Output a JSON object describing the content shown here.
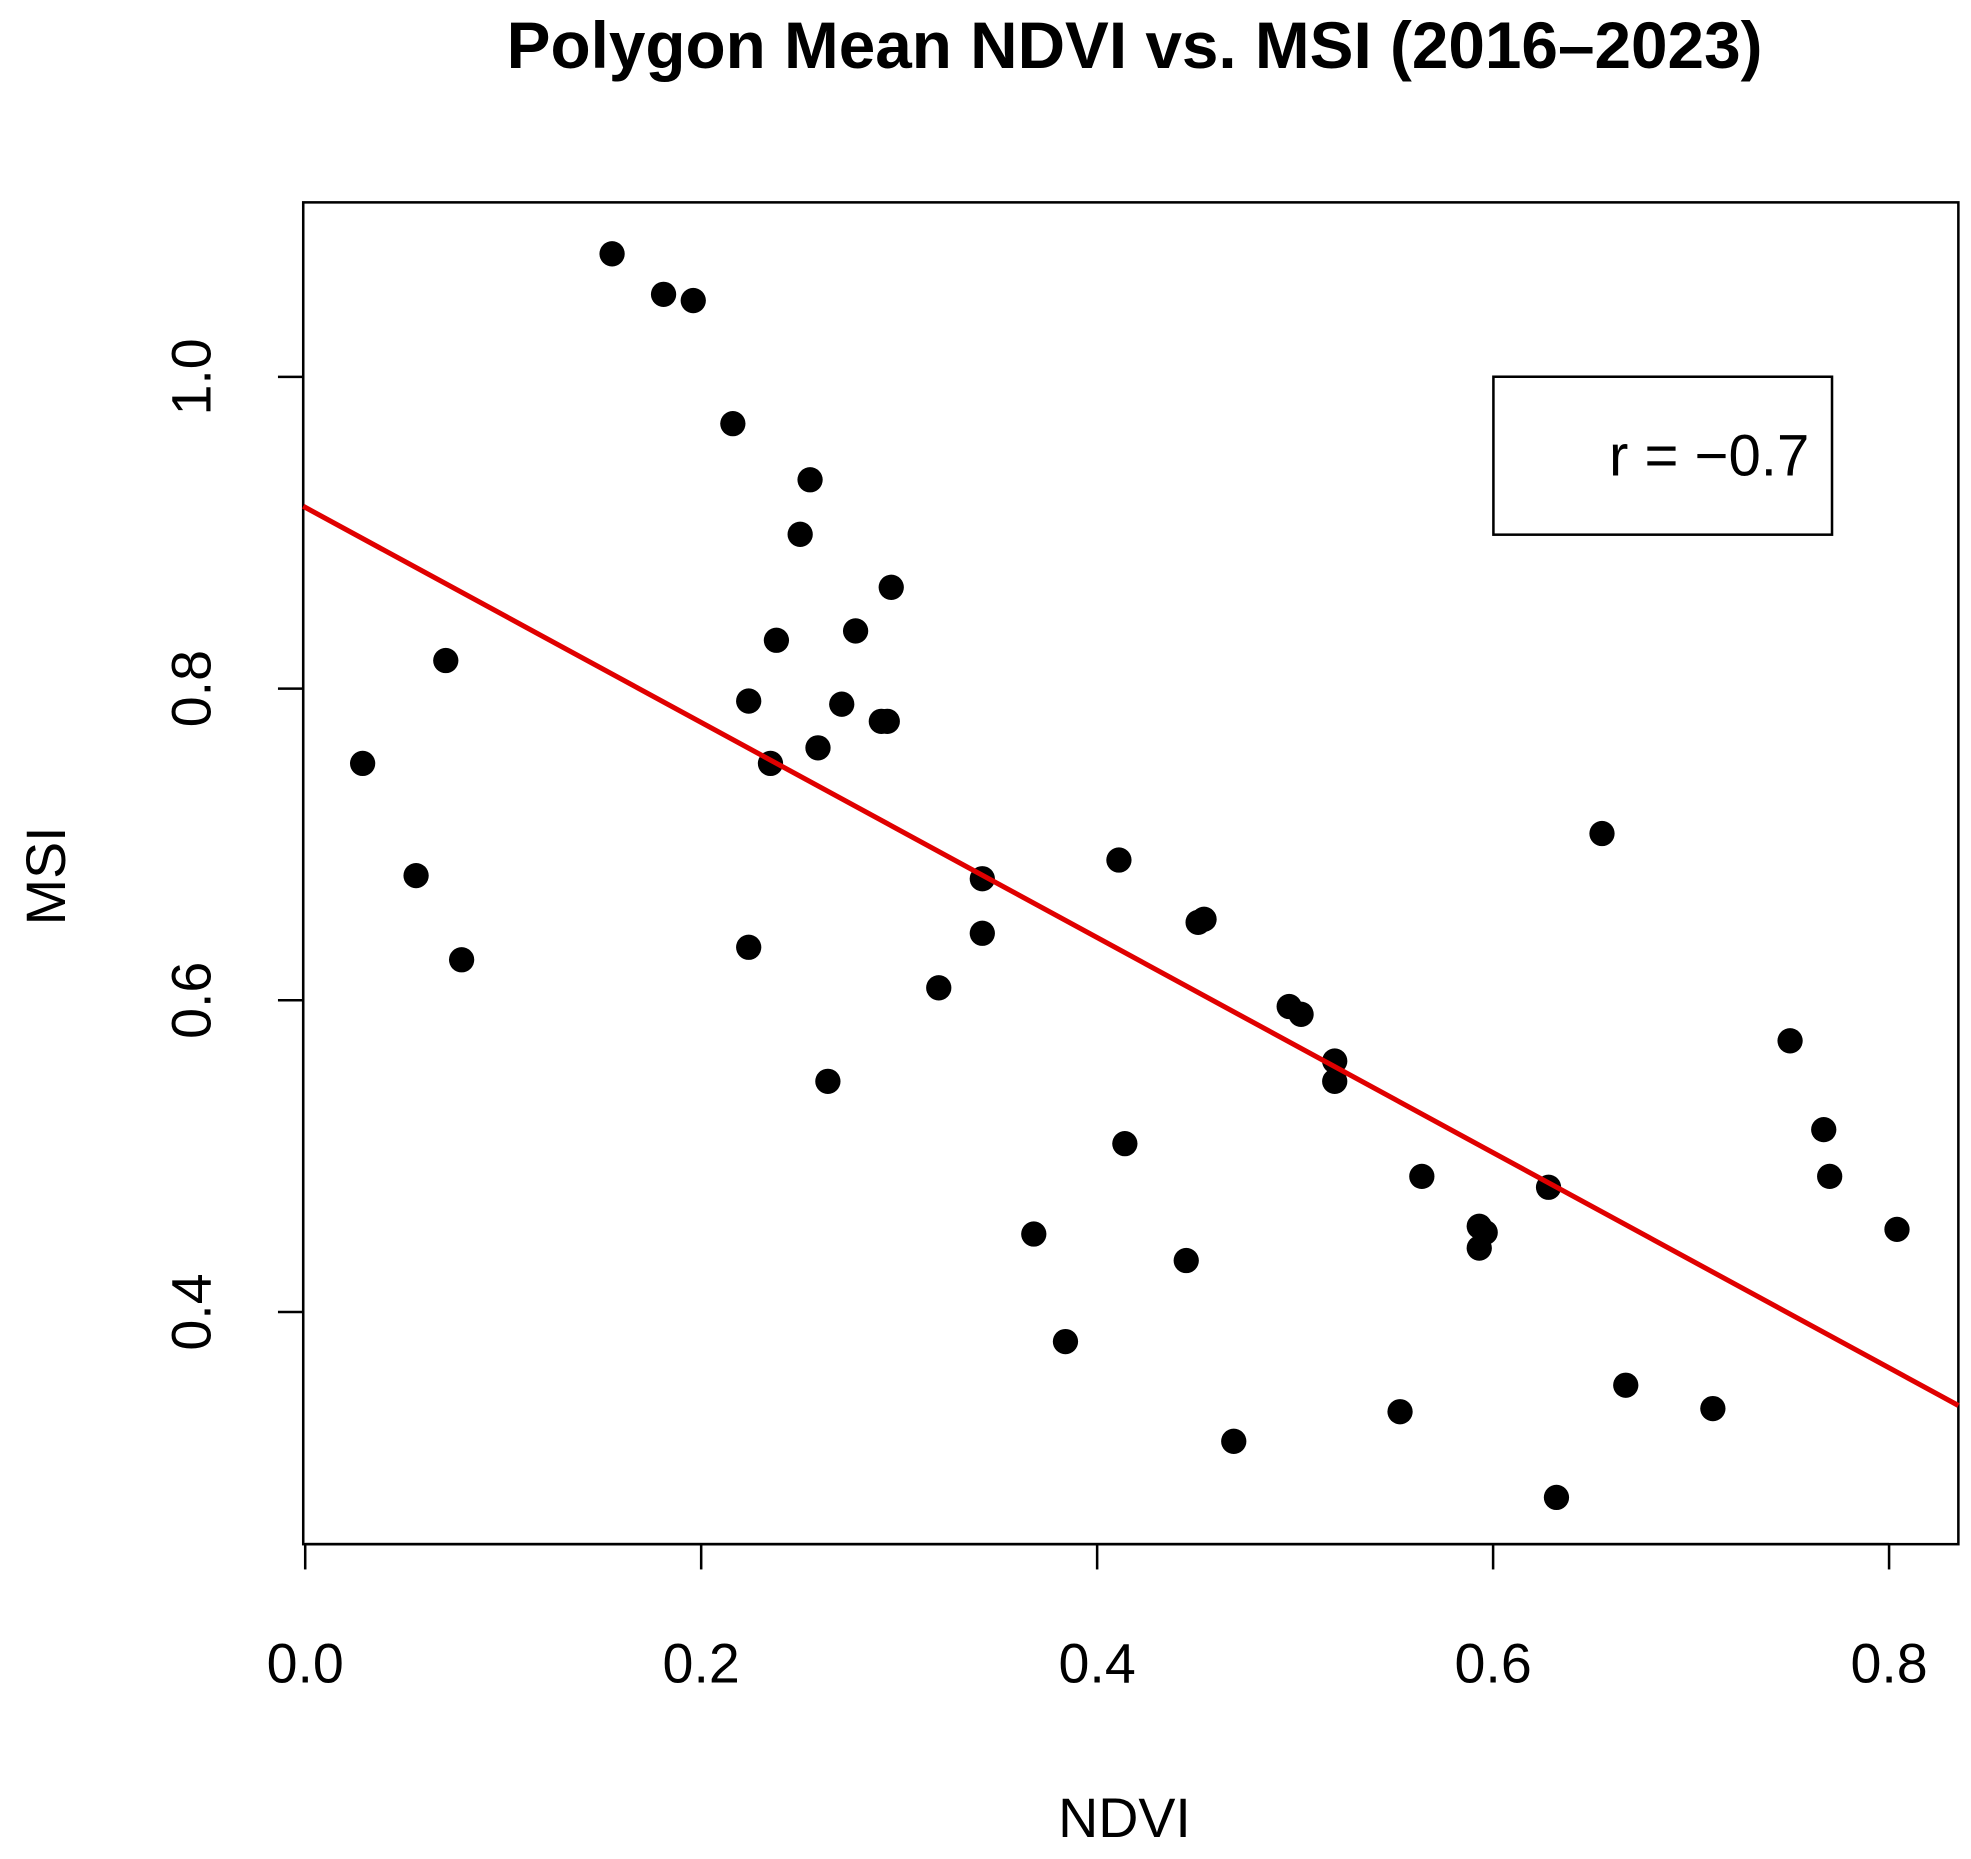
{
  "chart_data": {
    "type": "scatter",
    "title": "Polygon Mean NDVI vs. MSI (2016–2023)",
    "x_label": "NDVI",
    "y_label": "MSI",
    "annotation": "r = −0.7",
    "color": "#000000",
    "fit_color": "#e00000",
    "xlim": [
      -0.001,
      0.835
    ],
    "ylim": [
      0.251,
      1.112
    ],
    "xticks": [
      {
        "value": 0,
        "label": "0.0"
      },
      0.2,
      0.4,
      0.6,
      0.8
    ],
    "yticks": [
      0.4,
      0.6,
      0.8,
      {
        "value": 1,
        "label": "1.0"
      }
    ],
    "x": [
      0.029,
      0.056,
      0.071,
      0.079,
      0.155,
      0.181,
      0.196,
      0.216,
      0.224,
      0.224,
      0.235,
      0.238,
      0.25,
      0.255,
      0.259,
      0.264,
      0.271,
      0.278,
      0.291,
      0.294,
      0.296,
      0.32,
      0.342,
      0.342,
      0.368,
      0.384,
      0.411,
      0.414,
      0.445,
      0.451,
      0.454,
      0.469,
      0.497,
      0.503,
      0.52,
      0.52,
      0.553,
      0.564,
      0.593,
      0.593,
      0.596,
      0.628,
      0.632,
      0.655,
      0.667,
      0.711,
      0.75,
      0.767,
      0.77,
      0.804
    ],
    "values": [
      0.752,
      0.68,
      0.818,
      0.626,
      1.079,
      1.053,
      1.049,
      0.97,
      0.792,
      0.634,
      0.752,
      0.831,
      0.899,
      0.934,
      0.762,
      0.548,
      0.79,
      0.837,
      0.779,
      0.779,
      0.865,
      0.608,
      0.678,
      0.643,
      0.45,
      0.381,
      0.69,
      0.508,
      0.433,
      0.65,
      0.652,
      0.317,
      0.596,
      0.591,
      0.561,
      0.548,
      0.336,
      0.487,
      0.455,
      0.441,
      0.451,
      0.48,
      0.281,
      0.707,
      0.353,
      0.338,
      0.574,
      0.517,
      0.487,
      0.453
    ],
    "fit_line": {
      "x": [
        -0.001,
        0.835
      ],
      "y": [
        0.917,
        0.34
      ]
    }
  }
}
